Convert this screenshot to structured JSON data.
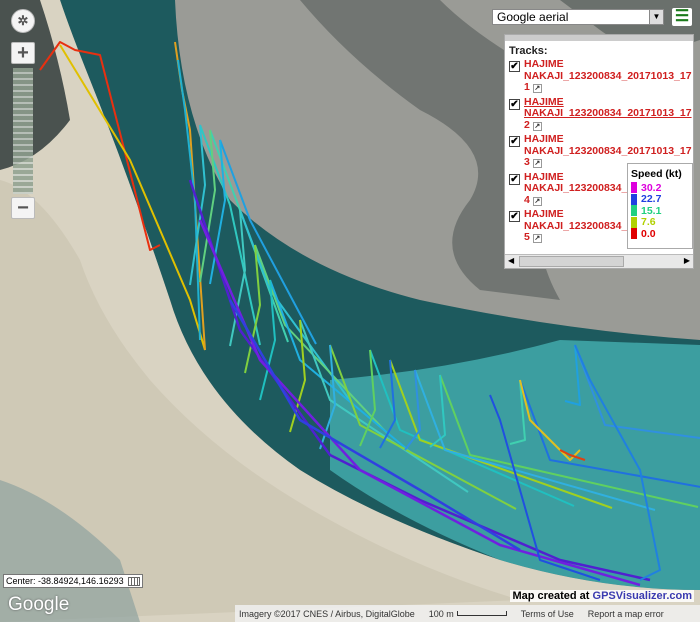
{
  "map_type": {
    "selected": "Google aerial"
  },
  "tracks_panel": {
    "title": "Tracks:",
    "items": [
      {
        "line1": "HAJIME",
        "line2": "NAKAJI_123200834_20171013_17",
        "num": "1",
        "checked": true
      },
      {
        "line1": "HAJIME",
        "line2": "NAKAJI_123200834_20171013_17",
        "num": "2",
        "checked": true
      },
      {
        "line1": "HAJIME",
        "line2": "NAKAJI_123200834_20171013_17",
        "num": "3",
        "checked": true
      },
      {
        "line1": "HAJIME",
        "line2": "NAKAJI_123200834_",
        "num": "4",
        "checked": true
      },
      {
        "line1": "HAJIME",
        "line2": "NAKAJI_123200834_",
        "num": "5",
        "checked": true
      }
    ]
  },
  "speed_legend": {
    "title": "Speed (kt)",
    "stops": [
      {
        "label": "30.2",
        "color": "#dd00dd"
      },
      {
        "label": "22.7",
        "color": "#2040e0"
      },
      {
        "label": "15.1",
        "color": "#20d080"
      },
      {
        "label": "7.6",
        "color": "#b0d000"
      },
      {
        "label": "0.0",
        "color": "#e00000"
      }
    ]
  },
  "center_readout": "Center: -38.84924,146.16293",
  "logo": "Google",
  "credit": {
    "prefix": "Map created at ",
    "link": "GPSVisualizer.com"
  },
  "attribution": {
    "imagery": "Imagery ©2017 CNES / Airbus, DigitalGlobe",
    "scale": "100 m",
    "terms": "Terms of Use",
    "report": "Report a map error"
  },
  "icons": {
    "compass": "compass-icon",
    "zoom_in": "plus-icon",
    "zoom_out": "minus-icon",
    "menu": "hamburger-icon",
    "external": "external-link-icon"
  }
}
